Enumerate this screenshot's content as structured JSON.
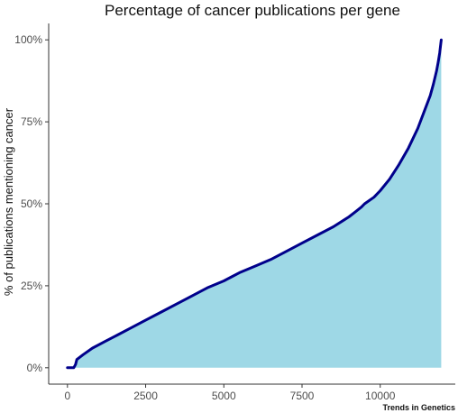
{
  "chart_data": {
    "type": "area",
    "title": "Percentage of cancer publications per gene",
    "xlabel": "",
    "ylabel": "% of publications mentioning cancer",
    "xlim": [
      -600,
      12400
    ],
    "ylim": [
      -0.05,
      1.05
    ],
    "x_ticks": [
      {
        "value": 0,
        "label": "0"
      },
      {
        "value": 2500,
        "label": "2500"
      },
      {
        "value": 5000,
        "label": "5000"
      },
      {
        "value": 7500,
        "label": "7500"
      },
      {
        "value": 10000,
        "label": "10000"
      }
    ],
    "y_ticks": [
      {
        "value": 0,
        "label": "0%"
      },
      {
        "value": 0.25,
        "label": "25%"
      },
      {
        "value": 0.5,
        "label": "50%"
      },
      {
        "value": 0.75,
        "label": "75%"
      },
      {
        "value": 1.0,
        "label": "100%"
      }
    ],
    "grid": false,
    "fill_color": "#9ed8e6",
    "line_color": "#00008b",
    "series": [
      {
        "x": [
          0,
          200,
          260,
          300,
          500,
          800,
          1200,
          1600,
          2000,
          2500,
          3000,
          3500,
          4000,
          4500,
          5000,
          5500,
          6000,
          6500,
          7000,
          7500,
          8000,
          8500,
          9000,
          9200,
          9400,
          9500,
          9800,
          10000,
          10300,
          10600,
          10900,
          11200,
          11400,
          11600,
          11700,
          11800,
          11850,
          11900,
          11950
        ],
        "y": [
          0,
          0,
          0.01,
          0.025,
          0.04,
          0.06,
          0.08,
          0.1,
          0.12,
          0.145,
          0.17,
          0.195,
          0.22,
          0.245,
          0.265,
          0.29,
          0.31,
          0.33,
          0.355,
          0.38,
          0.405,
          0.43,
          0.46,
          0.475,
          0.49,
          0.5,
          0.52,
          0.54,
          0.575,
          0.62,
          0.67,
          0.73,
          0.78,
          0.83,
          0.865,
          0.905,
          0.93,
          0.96,
          1.0
        ]
      }
    ]
  },
  "credit": "Trends in Genetics"
}
